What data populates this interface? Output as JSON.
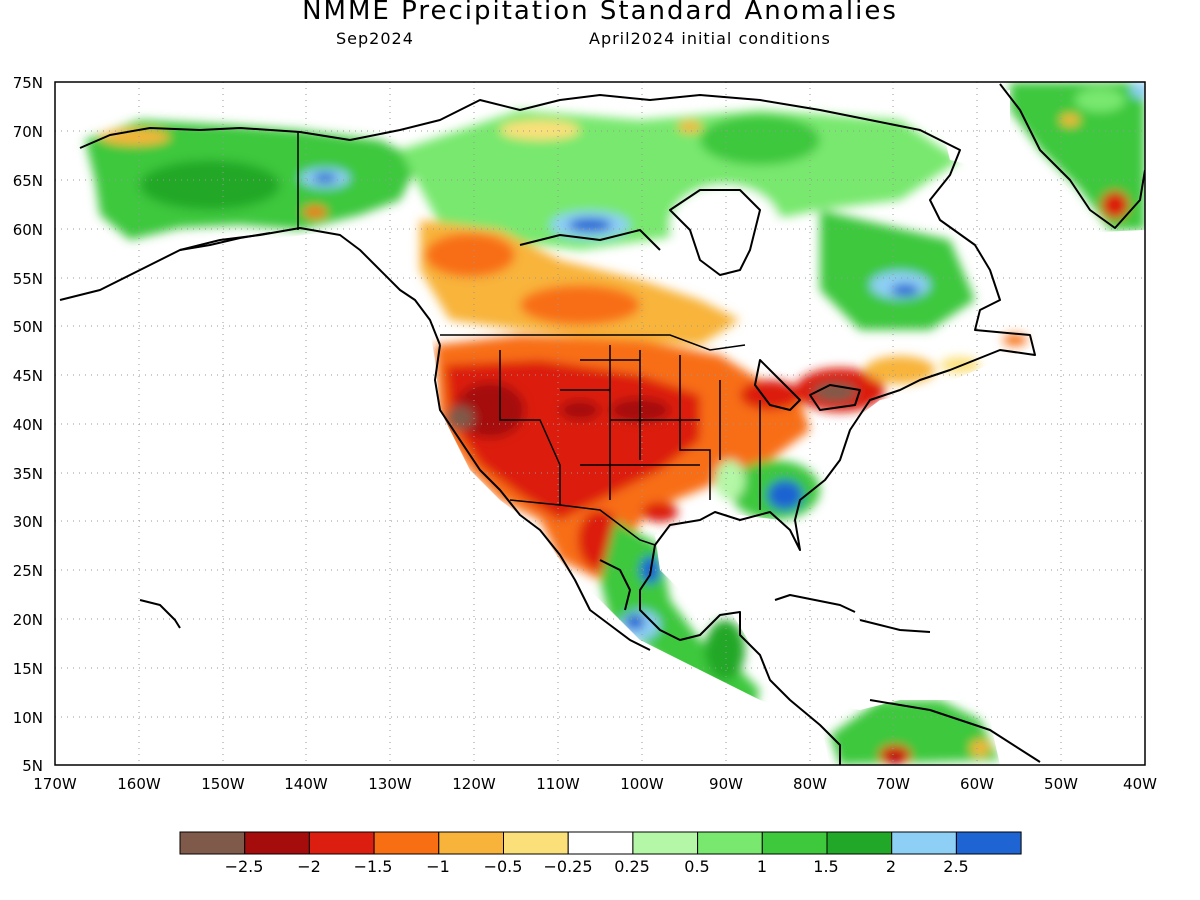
{
  "title": "NMME Precipitation Standard Anomalies",
  "subtitle_left": "Sep2024",
  "subtitle_right": "April2024 initial conditions",
  "map": {
    "lon_range": [
      -170,
      -40
    ],
    "lat_range": [
      5,
      75
    ],
    "lat_ticks": [
      "75N",
      "70N",
      "65N",
      "60N",
      "55N",
      "50N",
      "45N",
      "40N",
      "35N",
      "30N",
      "25N",
      "20N",
      "15N",
      "10N",
      "5N"
    ],
    "lon_ticks": [
      "170W",
      "160W",
      "150W",
      "140W",
      "130W",
      "120W",
      "110W",
      "100W",
      "90W",
      "80W",
      "70W",
      "60W",
      "50W",
      "40W"
    ],
    "grid": true
  },
  "colorbar": {
    "labels": [
      "−2.5",
      "−2",
      "−1.5",
      "−1",
      "−0.5",
      "−0.25",
      "0.25",
      "0.5",
      "1",
      "1.5",
      "2",
      "2.5"
    ],
    "colors": [
      "#7f5a4a",
      "#a50c0c",
      "#dc1e10",
      "#f86e12",
      "#f8b43a",
      "#fbe07a",
      "#ffffff",
      "#b4f7a6",
      "#78e86e",
      "#3ec83c",
      "#22a828",
      "#8ecff5",
      "#1e64d2"
    ]
  }
}
